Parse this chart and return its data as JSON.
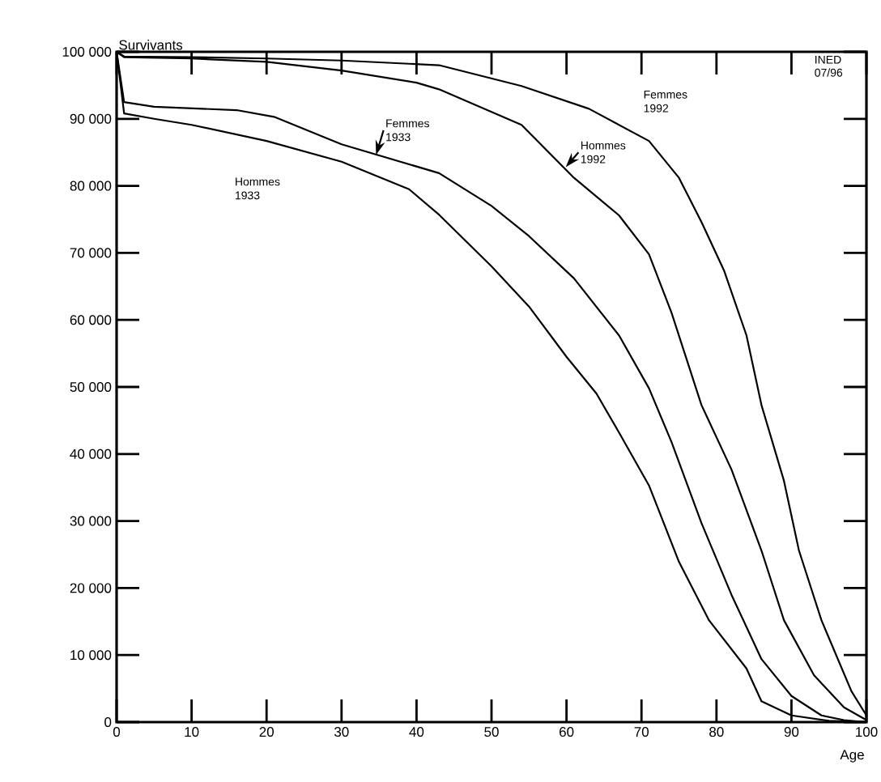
{
  "chart_data": {
    "type": "line",
    "xlabel": "Age",
    "ylabel": "Survivants",
    "annotations": [
      "INED 07/96"
    ],
    "xlim": [
      0,
      100
    ],
    "ylim": [
      0,
      100000
    ],
    "xticks": [
      0,
      10,
      20,
      30,
      40,
      50,
      60,
      70,
      80,
      90,
      100
    ],
    "yticks": [
      {
        "value": 0,
        "label": "0"
      },
      {
        "value": 10000,
        "label": "10 000"
      },
      {
        "value": 20000,
        "label": "20 000"
      },
      {
        "value": 30000,
        "label": "30 000"
      },
      {
        "value": 40000,
        "label": "40 000"
      },
      {
        "value": 50000,
        "label": "50 000"
      },
      {
        "value": 60000,
        "label": "60 000"
      },
      {
        "value": 70000,
        "label": "70 000"
      },
      {
        "value": 80000,
        "label": "80 000"
      },
      {
        "value": 90000,
        "label": "90 000"
      },
      {
        "value": 100000,
        "label": "100 000"
      }
    ],
    "series": [
      {
        "name": "Hommes 1933",
        "color": "#000000",
        "x": [
          0,
          1,
          5,
          10,
          20,
          30,
          39,
          43,
          50,
          55,
          60,
          64,
          67,
          71,
          75,
          79,
          84,
          86,
          90,
          95,
          100
        ],
        "values": [
          100000,
          90800,
          90000,
          89100,
          86700,
          83600,
          79500,
          75700,
          68000,
          62000,
          54500,
          49000,
          43200,
          35300,
          23900,
          15200,
          8000,
          3100,
          1000,
          200,
          0
        ]
      },
      {
        "name": "Femmes 1933",
        "color": "#000000",
        "x": [
          0,
          1,
          5,
          16,
          21,
          30,
          43,
          50,
          55,
          61,
          67,
          71,
          74,
          78,
          82,
          86,
          90,
          94,
          97,
          100
        ],
        "values": [
          100000,
          92500,
          91800,
          91300,
          90300,
          86200,
          81900,
          77000,
          72500,
          66200,
          57700,
          49800,
          41800,
          29700,
          19000,
          9400,
          3900,
          1000,
          300,
          0
        ]
      },
      {
        "name": "Hommes 1992",
        "color": "#000000",
        "x": [
          0,
          1,
          10,
          20,
          30,
          40,
          43,
          54,
          61,
          67,
          71,
          74,
          78,
          82,
          86,
          89,
          93,
          97,
          100
        ],
        "values": [
          100000,
          99200,
          99000,
          98500,
          97200,
          95400,
          94400,
          89100,
          81200,
          75600,
          69800,
          61100,
          47300,
          37700,
          25600,
          15200,
          7000,
          2200,
          300
        ]
      },
      {
        "name": "Femmes 1992",
        "color": "#000000",
        "x": [
          0,
          1,
          10,
          20,
          30,
          43,
          54,
          63,
          71,
          75,
          78,
          81,
          84,
          86,
          89,
          91,
          94,
          98,
          100
        ],
        "values": [
          100000,
          99300,
          99200,
          99000,
          98700,
          98000,
          94900,
          91500,
          86700,
          81200,
          74600,
          67400,
          57700,
          47300,
          36000,
          25600,
          15200,
          4600,
          1000
        ]
      }
    ]
  }
}
